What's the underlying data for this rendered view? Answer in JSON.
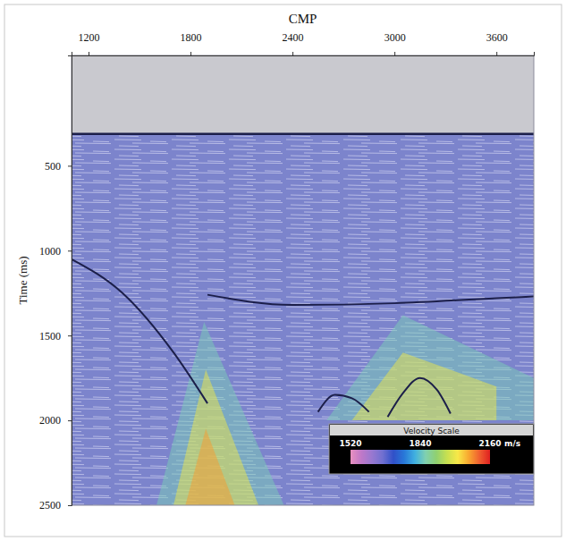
{
  "chart_data": {
    "type": "seismic_section",
    "x_label": "CMP",
    "y_label": "Time (ms)",
    "xlim": [
      1100,
      3820
    ],
    "xticks": [
      1200,
      1800,
      2400,
      3000,
      3600
    ],
    "ylim": [
      -150,
      2500
    ],
    "yticks": [
      500,
      1000,
      1500,
      2000,
      2500
    ],
    "horizons": [
      {
        "x": [
          1100,
          1800,
          2400,
          3000,
          3600,
          3820
        ],
        "y": [
          312,
          312,
          312,
          312,
          312,
          312
        ]
      },
      {
        "x": [
          1900,
          2400,
          3000,
          3600,
          3820
        ],
        "y": [
          1260,
          1320,
          1310,
          1280,
          1270
        ]
      },
      {
        "x": [
          1100,
          1400,
          1700,
          1900
        ],
        "y": [
          1050,
          1250,
          1600,
          1900
        ]
      },
      {
        "x": [
          2960,
          3050,
          3150,
          3250,
          3330
        ],
        "y": [
          1980,
          1840,
          1750,
          1820,
          1960
        ]
      },
      {
        "x": [
          2550,
          2650,
          2750,
          2850
        ],
        "y": [
          1950,
          1850,
          1870,
          1950
        ]
      }
    ],
    "velocity_regions": [
      {
        "velocity": 1860,
        "x": [
          1880,
          1600,
          2350
        ],
        "y": [
          1420,
          2500,
          2500
        ]
      },
      {
        "velocity": 2000,
        "x": [
          1890,
          1700,
          2200
        ],
        "y": [
          1700,
          2500,
          2500
        ]
      },
      {
        "velocity": 2070,
        "x": [
          1890,
          1770,
          2060
        ],
        "y": [
          2050,
          2500,
          2500
        ]
      },
      {
        "velocity": 1860,
        "x": [
          3050,
          2600,
          3820,
          3820
        ],
        "y": [
          1380,
          2000,
          2000,
          1750
        ]
      },
      {
        "velocity": 2000,
        "x": [
          3050,
          2750,
          3600,
          3600
        ],
        "y": [
          1600,
          2000,
          2000,
          1800
        ]
      }
    ],
    "color_bar": {
      "title": "Velocity Scale",
      "range": [
        1520,
        2160
      ],
      "ticks": [
        1520,
        1840,
        2160
      ],
      "unit": "m/s",
      "colors": [
        "#e890c0",
        "#c078c8",
        "#9878d0",
        "#7070d0",
        "#3050c8",
        "#2878d8",
        "#40b0e0",
        "#80d0b0",
        "#90d070",
        "#c8e050",
        "#f8e848",
        "#f8a830",
        "#f06030",
        "#e02020"
      ]
    }
  }
}
